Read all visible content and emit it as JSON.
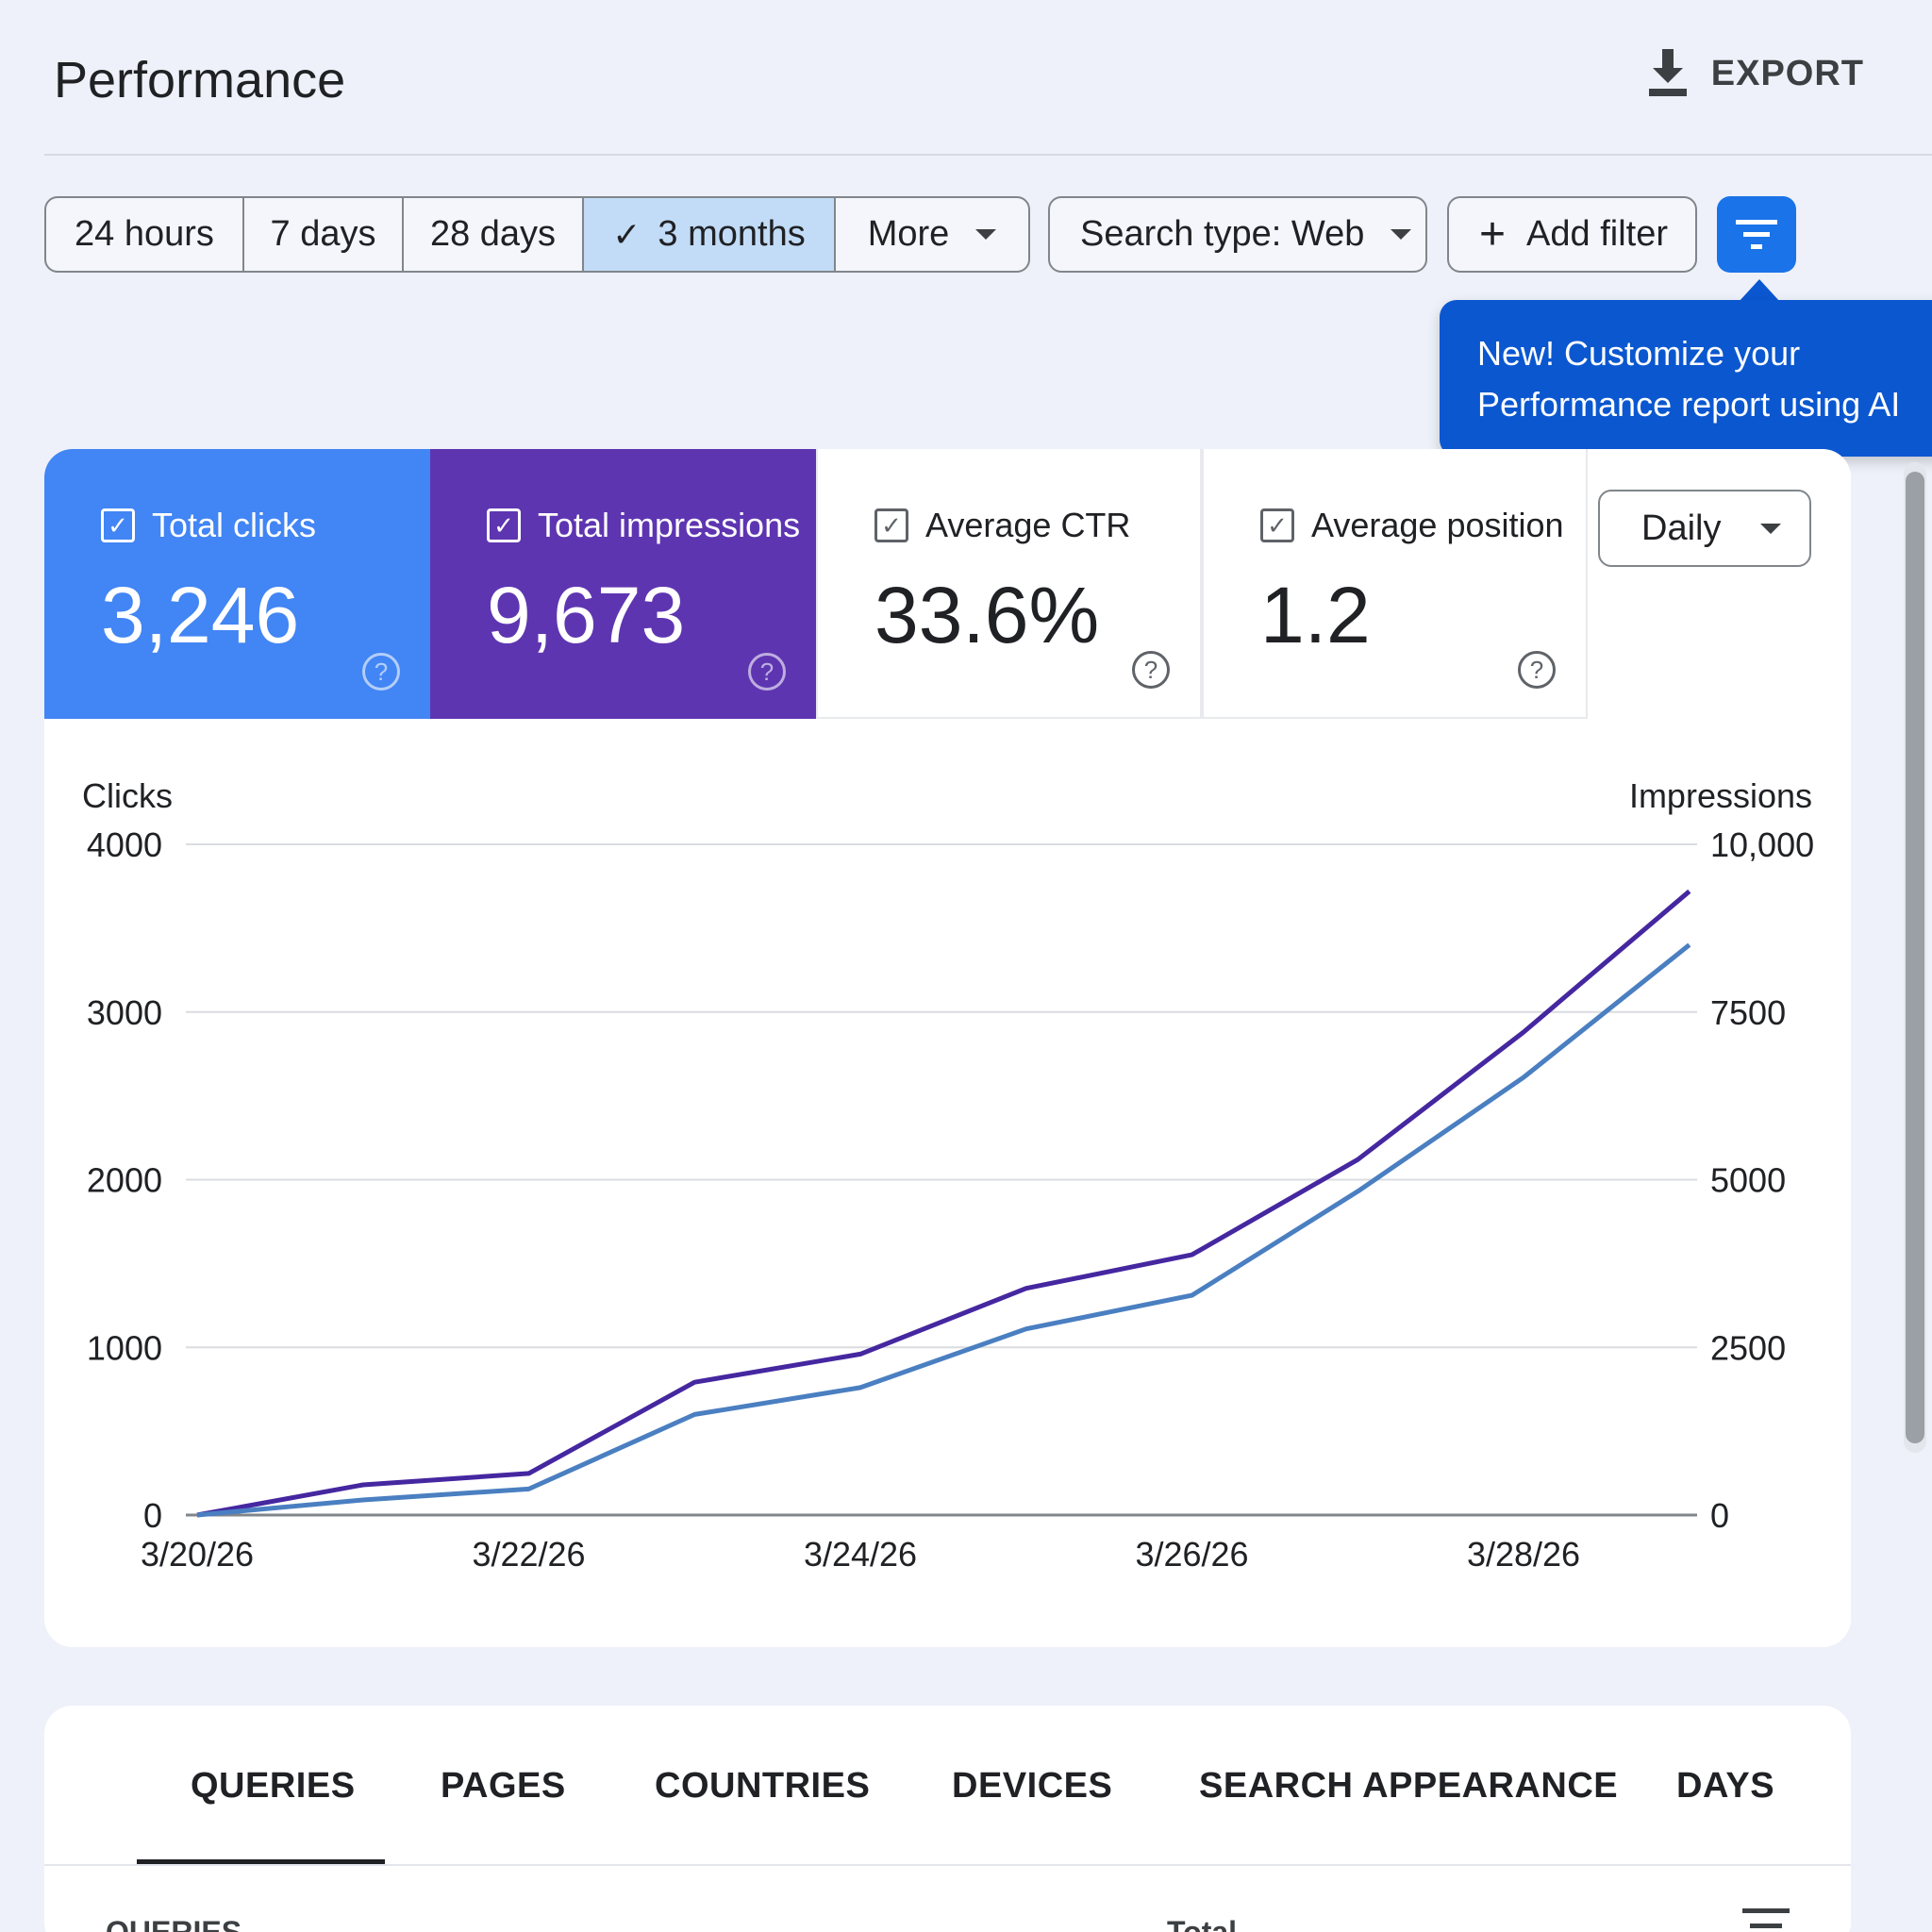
{
  "header": {
    "title": "Performance",
    "export_label": "EXPORT"
  },
  "filters": {
    "date_ranges": [
      {
        "label": "24 hours",
        "selected": false
      },
      {
        "label": "7 days",
        "selected": false
      },
      {
        "label": "28 days",
        "selected": false
      },
      {
        "label": "3 months",
        "selected": true
      },
      {
        "label": "More",
        "selected": false
      }
    ],
    "search_type": "Search type: Web",
    "add_filter": "Add filter"
  },
  "tooltip": {
    "line1": "New! Customize your",
    "line2": "Performance report using AI"
  },
  "metrics": [
    {
      "label": "Total clicks",
      "value": "3,246",
      "checked": true,
      "color": "#4285f4"
    },
    {
      "label": "Total impressions",
      "value": "9,673",
      "checked": true,
      "color": "#5e35b1"
    },
    {
      "label": "Average CTR",
      "value": "33.6%",
      "checked": true,
      "color": "#ffffff"
    },
    {
      "label": "Average position",
      "value": "1.2",
      "checked": true,
      "color": "#ffffff"
    }
  ],
  "granularity": "Daily",
  "chart_data": {
    "type": "line",
    "x": [
      "3/20/26",
      "3/21/26",
      "3/22/26",
      "3/23/26",
      "3/24/26",
      "3/25/26",
      "3/26/26",
      "3/27/26",
      "3/28/26",
      "3/29/26"
    ],
    "x_tick_labels": [
      "3/20/26",
      "3/22/26",
      "3/24/26",
      "3/26/26",
      "3/28/26"
    ],
    "ylabel_left": "Clicks",
    "ylabel_right": "Impressions",
    "ylim_left": [
      0,
      4000
    ],
    "ylim_right": [
      0,
      10000
    ],
    "yticks_left": [
      "4000",
      "3000",
      "2000",
      "1000",
      "0"
    ],
    "yticks_right": [
      "10,000",
      "7500",
      "5000",
      "2500",
      "0"
    ],
    "series": [
      {
        "axis": "right",
        "color": "#4527a0",
        "values": [
          0,
          450,
          620,
          1980,
          2400,
          3380,
          3880,
          5300,
          7200,
          9300
        ]
      },
      {
        "axis": "left",
        "color": "#4a7fc1",
        "values": [
          0,
          90,
          155,
          600,
          760,
          1110,
          1310,
          1930,
          2610,
          3400
        ]
      }
    ],
    "grid": true
  },
  "tabs": {
    "items": [
      "QUERIES",
      "PAGES",
      "COUNTRIES",
      "DEVICES",
      "SEARCH APPEARANCE",
      "DAYS"
    ],
    "active": "QUERIES"
  },
  "table_header_partial": {
    "left": "QUERIES",
    "right": "Total"
  }
}
